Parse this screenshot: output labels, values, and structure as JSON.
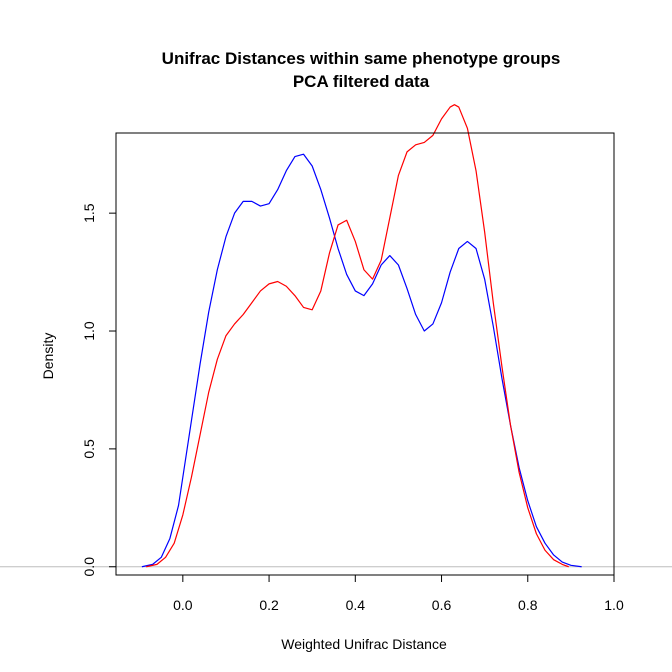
{
  "chart_data": {
    "type": "line",
    "title": "Unifrac Distances within same phenotype groups",
    "subtitle": "PCA filtered data",
    "xlabel": "Weighted Unifrac Distance",
    "ylabel": "Density",
    "xlim": [
      -0.155,
      1.0
    ],
    "ylim": [
      -0.035,
      1.84
    ],
    "x_ticks": [
      0.0,
      0.2,
      0.4,
      0.6,
      0.8,
      1.0
    ],
    "x_tick_labels": [
      "0.0",
      "0.2",
      "0.4",
      "0.6",
      "0.8",
      "1.0"
    ],
    "y_ticks": [
      0.0,
      0.5,
      1.0,
      1.5
    ],
    "y_tick_labels": [
      "0.0",
      "0.5",
      "1.0",
      "1.5"
    ],
    "reference_line_y": 0.0,
    "grid": false,
    "series": [
      {
        "color": "#0000ff",
        "x": [
          -0.095,
          -0.07,
          -0.05,
          -0.03,
          -0.01,
          0.0,
          0.02,
          0.04,
          0.06,
          0.08,
          0.1,
          0.12,
          0.14,
          0.16,
          0.18,
          0.2,
          0.22,
          0.24,
          0.26,
          0.28,
          0.3,
          0.32,
          0.34,
          0.36,
          0.38,
          0.4,
          0.42,
          0.44,
          0.46,
          0.48,
          0.5,
          0.52,
          0.54,
          0.56,
          0.58,
          0.6,
          0.62,
          0.64,
          0.66,
          0.68,
          0.7,
          0.72,
          0.74,
          0.76,
          0.78,
          0.8,
          0.82,
          0.84,
          0.86,
          0.88,
          0.9,
          0.925
        ],
        "y": [
          0.0,
          0.01,
          0.04,
          0.12,
          0.26,
          0.38,
          0.62,
          0.86,
          1.08,
          1.26,
          1.4,
          1.5,
          1.55,
          1.55,
          1.53,
          1.54,
          1.6,
          1.68,
          1.74,
          1.75,
          1.7,
          1.6,
          1.48,
          1.35,
          1.24,
          1.17,
          1.15,
          1.2,
          1.28,
          1.32,
          1.28,
          1.18,
          1.07,
          1.0,
          1.03,
          1.12,
          1.25,
          1.35,
          1.38,
          1.35,
          1.22,
          1.02,
          0.8,
          0.6,
          0.42,
          0.28,
          0.17,
          0.1,
          0.05,
          0.02,
          0.006,
          0.0
        ]
      },
      {
        "color": "#ff0000",
        "x": [
          -0.085,
          -0.06,
          -0.04,
          -0.02,
          0.0,
          0.02,
          0.04,
          0.06,
          0.08,
          0.1,
          0.12,
          0.14,
          0.16,
          0.18,
          0.2,
          0.22,
          0.24,
          0.26,
          0.28,
          0.3,
          0.32,
          0.34,
          0.36,
          0.38,
          0.4,
          0.42,
          0.44,
          0.46,
          0.48,
          0.5,
          0.52,
          0.54,
          0.56,
          0.58,
          0.6,
          0.62,
          0.63,
          0.64,
          0.66,
          0.68,
          0.7,
          0.72,
          0.74,
          0.76,
          0.78,
          0.8,
          0.82,
          0.84,
          0.86,
          0.88,
          0.895
        ],
        "y": [
          0.0,
          0.01,
          0.04,
          0.1,
          0.22,
          0.38,
          0.56,
          0.74,
          0.88,
          0.98,
          1.03,
          1.07,
          1.12,
          1.17,
          1.2,
          1.21,
          1.19,
          1.15,
          1.1,
          1.09,
          1.17,
          1.33,
          1.45,
          1.47,
          1.38,
          1.26,
          1.22,
          1.3,
          1.48,
          1.66,
          1.76,
          1.79,
          1.8,
          1.83,
          1.9,
          1.95,
          1.96,
          1.95,
          1.86,
          1.68,
          1.42,
          1.12,
          0.85,
          0.6,
          0.4,
          0.25,
          0.14,
          0.07,
          0.03,
          0.01,
          0.0
        ]
      }
    ]
  }
}
